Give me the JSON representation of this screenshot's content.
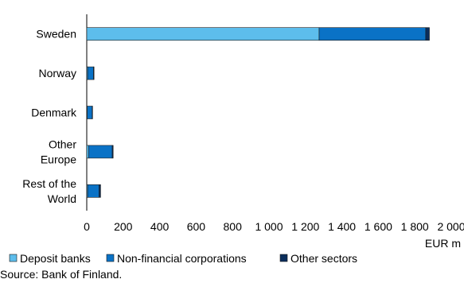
{
  "chart_data": {
    "type": "bar",
    "orientation": "horizontal",
    "stacked": true,
    "categories": [
      [
        "Sweden"
      ],
      [
        "Norway"
      ],
      [
        "Denmark"
      ],
      [
        "Other",
        "Europe"
      ],
      [
        "Rest of the",
        "World"
      ]
    ],
    "series": [
      {
        "name": "Deposit banks",
        "color": "#5dbdec",
        "values": [
          1275,
          5,
          3,
          10,
          5
        ]
      },
      {
        "name": "Non-financial corporations",
        "color": "#0a72c6",
        "values": [
          585,
          32,
          27,
          130,
          63
        ]
      },
      {
        "name": "Other sectors",
        "color": "#0b2e5c",
        "values": [
          20,
          3,
          2,
          5,
          8
        ]
      }
    ],
    "x_ticks": [
      "0",
      "200",
      "400",
      "600",
      "800",
      "1 000",
      "1 200",
      "1 400",
      "1 600",
      "1 800",
      "2 000"
    ],
    "x_unit": "EUR m",
    "xlim": [
      0,
      2000
    ],
    "grid": false,
    "legend_position": "bottom",
    "source": "Source: Bank of Finland."
  }
}
